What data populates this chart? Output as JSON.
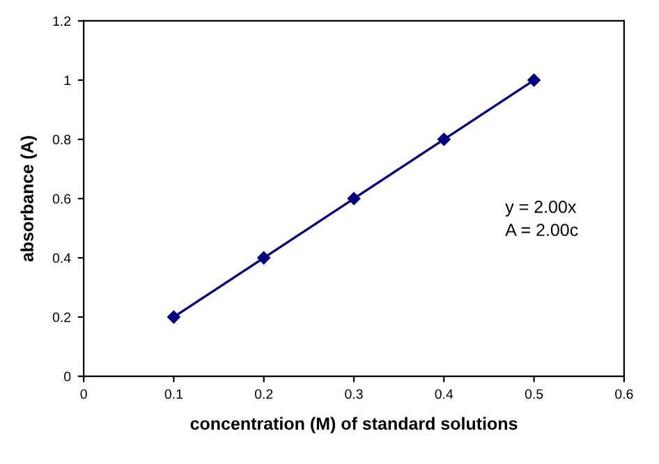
{
  "chart_data": {
    "type": "line",
    "xlabel": "concentration (M) of standard solutions",
    "ylabel": "absorbance (A)",
    "x": [
      0.1,
      0.2,
      0.3,
      0.4,
      0.5
    ],
    "series": [
      {
        "color": "#000080",
        "values": [
          0.2,
          0.4,
          0.6,
          0.8,
          1.0
        ]
      }
    ],
    "xlim": [
      0,
      0.6
    ],
    "xticks": [
      0,
      0.1,
      0.2,
      0.3,
      0.4,
      0.5,
      0.6
    ],
    "ylim": [
      0,
      1.2
    ],
    "yticks": [
      0,
      0.2,
      0.4,
      0.6,
      0.8,
      1,
      1.2
    ],
    "marker": "diamond",
    "line_style": "solid",
    "grid": false,
    "legend": false,
    "annotations": [
      "y = 2.00x",
      "A = 2.00c"
    ]
  }
}
